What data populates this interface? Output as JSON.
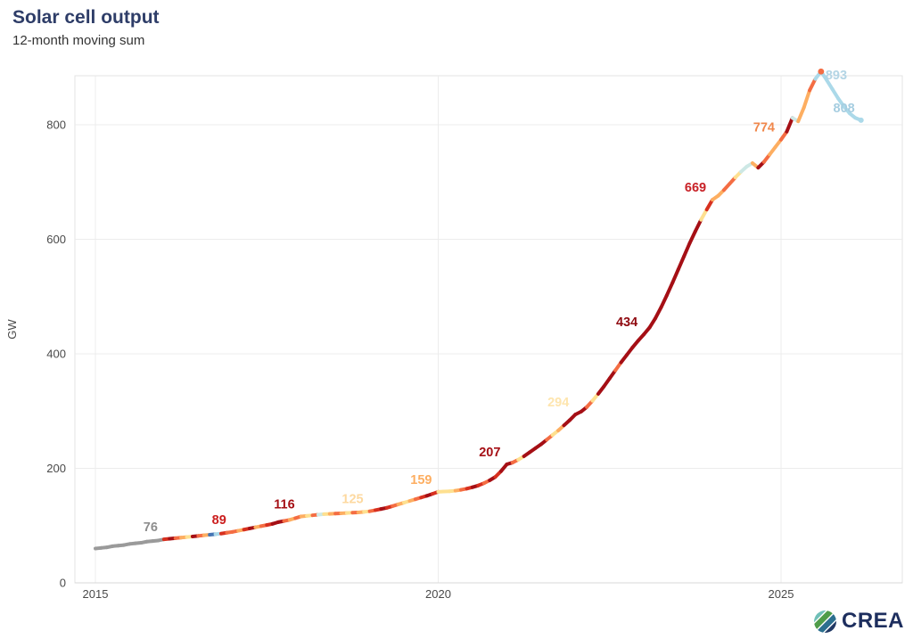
{
  "header": {
    "title": "Solar cell output",
    "subtitle": "12-month moving sum"
  },
  "footer": {
    "logo_text": "CREA",
    "logo_icon": "crea-leaf-icon",
    "logo_colors": [
      "#6fbfb7",
      "#4f9c49",
      "#2c6f8f",
      "#203864"
    ],
    "logo_text_color": "#1d2e5e"
  },
  "chart_data": {
    "type": "line",
    "title": "Solar cell output",
    "subtitle": "12-month moving sum",
    "ylabel": "GW",
    "xlabel": "",
    "ylim": [
      0,
      885
    ],
    "xlim": [
      2014.7,
      2026.45
    ],
    "y_ticks": [
      0,
      200,
      400,
      600,
      800
    ],
    "x_ticks": [
      2015,
      2020,
      2025
    ],
    "grid": true,
    "legend": "none",
    "series_start_year": 2015,
    "interval_months": 1,
    "values": [
      60,
      61,
      62,
      64,
      65,
      66,
      68,
      69,
      70,
      72,
      73,
      74,
      76,
      77,
      78,
      79,
      80,
      81,
      82,
      83,
      84,
      85,
      86,
      87.5,
      89,
      91,
      93,
      95,
      97,
      99,
      101,
      103,
      106,
      108,
      110,
      113,
      116,
      117,
      118,
      119,
      120,
      120.5,
      121,
      121.5,
      122,
      122.5,
      123,
      124,
      125,
      127,
      129,
      131,
      134,
      137,
      140,
      143,
      146,
      149,
      152,
      155.5,
      159,
      159.5,
      160,
      161,
      162.5,
      164.5,
      167,
      170,
      174,
      179,
      185,
      195,
      207,
      210,
      215,
      221,
      228,
      235,
      242,
      250,
      258,
      266,
      275,
      284,
      294,
      299,
      307,
      318,
      330,
      343,
      357,
      371,
      385,
      398,
      411,
      423,
      434,
      446,
      462,
      481,
      502,
      524,
      547,
      570,
      593,
      614,
      634,
      652,
      669,
      676,
      686,
      697,
      708,
      718,
      727,
      733,
      725,
      735,
      748,
      761,
      774,
      788,
      812,
      806,
      830,
      860,
      880,
      893,
      878,
      862,
      846,
      832,
      820,
      812,
      808
    ],
    "palette": {
      "g": "#9a9a9a",
      "a": "#a50f15",
      "r": "#d7301f",
      "o": "#f46d43",
      "l": "#fdae61",
      "c": "#fee090",
      "m": "#cde8e5",
      "b": "#abd9e9",
      "B": "#4575b4"
    },
    "segment_colors": "ggggggggggggraolcaolBbroolraloraaololcomclolcolcorarolclorarcccloraroaraaocaaaaoclaaaaocaaaoaaaaaaaaaaaaaacrlloocmmlaolloamllobbbbbbbb",
    "annotations": [
      {
        "label": "76",
        "t": 2016.0,
        "v": 76,
        "color": "#8d8d8d",
        "side": "left"
      },
      {
        "label": "89",
        "t": 2017.0,
        "v": 89,
        "color": "#cb1d1d",
        "side": "left"
      },
      {
        "label": "116",
        "t": 2018.0,
        "v": 116,
        "color": "#a50f15",
        "side": "left"
      },
      {
        "label": "125",
        "t": 2019.0,
        "v": 125,
        "color": "#fdd9a0",
        "side": "left"
      },
      {
        "label": "159",
        "t": 2020.0,
        "v": 159,
        "color": "#fdae61",
        "side": "left"
      },
      {
        "label": "207",
        "t": 2021.0,
        "v": 207,
        "color": "#a50f15",
        "side": "left"
      },
      {
        "label": "294",
        "t": 2022.0,
        "v": 294,
        "color": "#fee5ae",
        "side": "left"
      },
      {
        "label": "434",
        "t": 2023.0,
        "v": 434,
        "color": "#8f0a10",
        "side": "left"
      },
      {
        "label": "669",
        "t": 2024.0,
        "v": 669,
        "color": "#c82127",
        "side": "left"
      },
      {
        "label": "774",
        "t": 2025.0,
        "v": 774,
        "color": "#f0874b",
        "side": "left"
      },
      {
        "label": "893",
        "t": 2025.583,
        "v": 893,
        "color": "#b4d5e5",
        "side": "right"
      },
      {
        "label": "808",
        "t": 2026.167,
        "v": 808,
        "color": "#a5cde0",
        "side": "left"
      }
    ],
    "axis_text_color": "#4a4a4a",
    "grid_color": "#ececec",
    "panel_border_color": "#e3e3e3"
  }
}
